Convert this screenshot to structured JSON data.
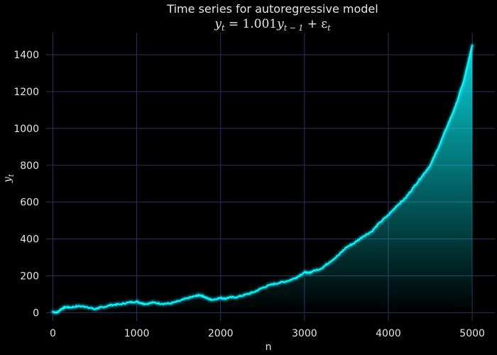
{
  "chart_data": {
    "type": "area",
    "title": "Time series for autoregressive model",
    "subtitle": "y_t = 1.001y_{t-1} + ε_t",
    "subtitle_parts": {
      "y": "y",
      "t": "t",
      "eq": " = 1.001",
      "y2": "y",
      "tm1": "t − 1",
      "plus": " + ε",
      "t2": "t"
    },
    "xlabel": "n",
    "ylabel": "y",
    "ylabel_sub": "t",
    "xlim": [
      -80,
      5270
    ],
    "ylim": [
      -45,
      1520
    ],
    "xticks": [
      0,
      1000,
      2000,
      3000,
      4000,
      5000
    ],
    "yticks": [
      0,
      200,
      400,
      600,
      800,
      1000,
      1200,
      1400
    ],
    "grid": true,
    "colors": {
      "background": "#000000",
      "line": "#08F7FE",
      "grid": "#2A3459",
      "text": "#E6E6E6"
    },
    "series": [
      {
        "x": [
          0,
          50,
          100,
          150,
          200,
          300,
          400,
          500,
          550,
          600,
          700,
          800,
          900,
          1000,
          1050,
          1100,
          1200,
          1300,
          1400,
          1500,
          1600,
          1700,
          1750,
          1800,
          1850,
          1900,
          2000,
          2050,
          2100,
          2200,
          2300,
          2400,
          2500,
          2600,
          2700,
          2800,
          2900,
          3000,
          3050,
          3100,
          3200,
          3300,
          3400,
          3500,
          3600,
          3700,
          3800,
          3900,
          4000,
          4100,
          4200,
          4300,
          4400,
          4500,
          4600,
          4700,
          4800,
          4900,
          5000
        ],
        "values": [
          5,
          0,
          20,
          30,
          28,
          35,
          32,
          18,
          27,
          30,
          42,
          45,
          55,
          60,
          52,
          47,
          55,
          48,
          50,
          62,
          78,
          90,
          95,
          88,
          75,
          70,
          80,
          76,
          82,
          85,
          98,
          112,
          135,
          152,
          162,
          172,
          190,
          220,
          215,
          225,
          240,
          275,
          310,
          355,
          380,
          415,
          440,
          490,
          530,
          580,
          620,
          680,
          740,
          800,
          900,
          1010,
          1120,
          1260,
          1450
        ]
      }
    ]
  }
}
